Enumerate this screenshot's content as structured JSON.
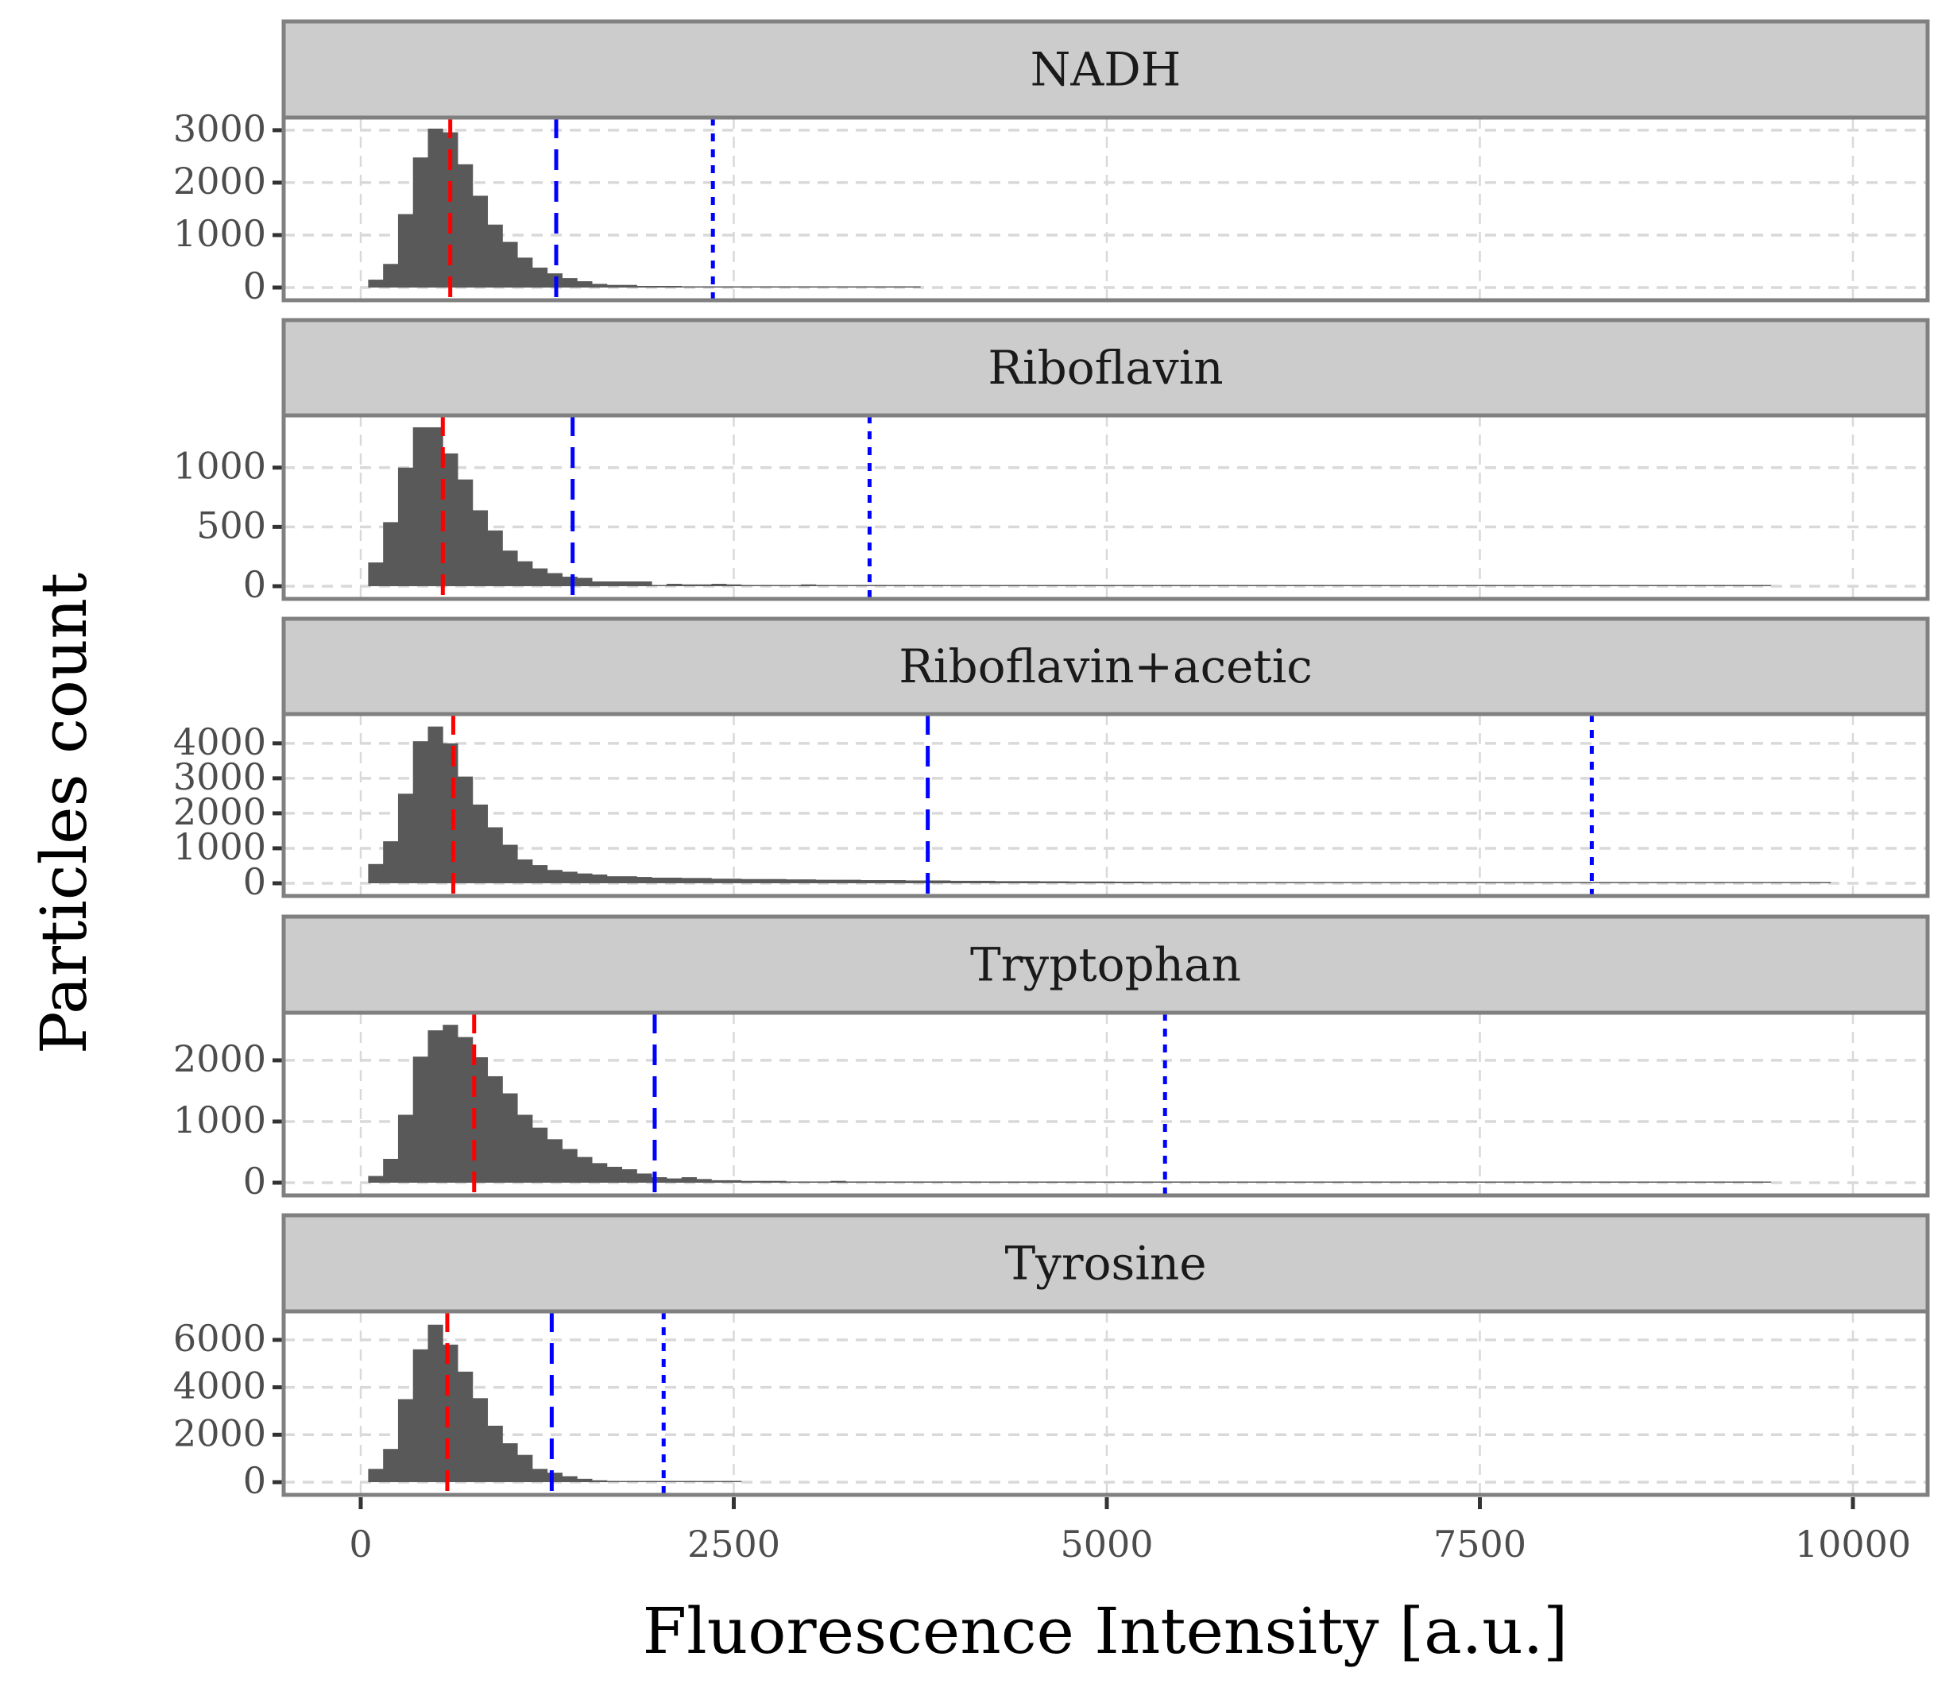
{
  "chart_data": {
    "type": "bar",
    "subtype": "faceted-histogram",
    "xlabel": "Fluorescence Intensity [a.u.]",
    "ylabel": "Particles count",
    "xlim": [
      -500,
      10500
    ],
    "x_ticks": [
      0,
      2500,
      5000,
      7500,
      10000
    ],
    "x_tick_labels": [
      "0",
      "2500",
      "5000",
      "7500",
      "10000"
    ],
    "bin_width": 100,
    "grid": true,
    "colors": {
      "bars": "#595959",
      "strip_fill": "#cccccc",
      "border": "#808080",
      "grid": "#d9d9d9",
      "median_line": "#ff0000",
      "quantile_line": "#0000ff"
    },
    "reference_lines": {
      "red_dashed": "median",
      "blue_dashed": "threshold 1",
      "blue_dotted": "threshold 2"
    },
    "panels": [
      {
        "name": "NADH",
        "ylim": [
          0,
          3150
        ],
        "y_ticks": [
          0,
          1000,
          2000,
          3000
        ],
        "y_tick_labels": [
          "0",
          "1000",
          "2000",
          "3000"
        ],
        "bin_start": 50,
        "counts": [
          150,
          450,
          1400,
          2480,
          3030,
          2960,
          2350,
          1750,
          1200,
          870,
          570,
          380,
          270,
          180,
          120,
          70,
          50,
          50,
          30,
          30,
          30,
          20,
          20,
          20,
          15,
          15,
          15,
          10,
          15,
          10,
          10,
          0,
          0,
          5,
          5,
          5,
          5
        ],
        "red_dashed": 600,
        "blue_dashed": 1310,
        "blue_dotted": 2360
      },
      {
        "name": "Riboflavin",
        "ylim": [
          0,
          1400
        ],
        "y_ticks": [
          0,
          500,
          1000
        ],
        "y_tick_labels": [
          "0",
          "500",
          "1000"
        ],
        "bin_start": 50,
        "counts": [
          200,
          540,
          1000,
          1340,
          1340,
          1120,
          900,
          640,
          470,
          300,
          210,
          150,
          110,
          80,
          70,
          40,
          40,
          40,
          40,
          10,
          20,
          15,
          15,
          20,
          15,
          10,
          10,
          10,
          10,
          15,
          10,
          10,
          10,
          10,
          10,
          10,
          10,
          10,
          10,
          10,
          10,
          10,
          10,
          10,
          10,
          8,
          8,
          8,
          8,
          8,
          8,
          8,
          8,
          8,
          8,
          8,
          8,
          8,
          8,
          8,
          8,
          5,
          5,
          5,
          5,
          5,
          5,
          5,
          5,
          5,
          5,
          5,
          5,
          5,
          5,
          5,
          5,
          5,
          5,
          5,
          5,
          5,
          5,
          5,
          5,
          5,
          5,
          5,
          5,
          5,
          5,
          5,
          5,
          5
        ],
        "red_dashed": 550,
        "blue_dashed": 1420,
        "blue_dotted": 3410
      },
      {
        "name": "Riboflavin+acetic",
        "ylim": [
          0,
          4700
        ],
        "y_ticks": [
          0,
          1000,
          2000,
          3000,
          4000
        ],
        "y_tick_labels": [
          "0",
          "1000",
          "2000",
          "3000",
          "4000"
        ],
        "bin_start": 50,
        "counts": [
          550,
          1200,
          2560,
          4060,
          4480,
          4000,
          3050,
          2250,
          1600,
          1100,
          680,
          520,
          380,
          330,
          280,
          250,
          200,
          200,
          180,
          160,
          160,
          150,
          150,
          130,
          130,
          120,
          120,
          120,
          110,
          110,
          100,
          100,
          100,
          90,
          90,
          90,
          80,
          80,
          80,
          70,
          70,
          70,
          60,
          60,
          60,
          55,
          55,
          50,
          50,
          50,
          45,
          45,
          40,
          40,
          40,
          35,
          35,
          30,
          30,
          30,
          30,
          25,
          25,
          25,
          25,
          20,
          20,
          20,
          20,
          20,
          15,
          15,
          15,
          15,
          15,
          10,
          10,
          10,
          10,
          10,
          10,
          10,
          10,
          10,
          8,
          8,
          8,
          8,
          8,
          8,
          8,
          8,
          8,
          8,
          8,
          5,
          5,
          5
        ],
        "red_dashed": 620,
        "blue_dashed": 3800,
        "blue_dotted": 8250
      },
      {
        "name": "Tryptophan",
        "ylim": [
          0,
          2700
        ],
        "y_ticks": [
          0,
          1000,
          2000
        ],
        "y_tick_labels": [
          "0",
          "1000",
          "2000"
        ],
        "bin_start": 50,
        "counts": [
          110,
          390,
          1110,
          2060,
          2490,
          2580,
          2380,
          2050,
          1740,
          1460,
          1110,
          900,
          710,
          550,
          420,
          320,
          260,
          220,
          150,
          90,
          70,
          90,
          60,
          40,
          40,
          30,
          30,
          30,
          20,
          20,
          20,
          30,
          20,
          20,
          20,
          20,
          20,
          20,
          20,
          20,
          20,
          15,
          15,
          15,
          15,
          15,
          15,
          15,
          15,
          10,
          10,
          10,
          10,
          10,
          10,
          10,
          10,
          10,
          10,
          10,
          10,
          10,
          10,
          10,
          10,
          10,
          10,
          10,
          10,
          10,
          10,
          10,
          10,
          10,
          10,
          10,
          10,
          10,
          10,
          10,
          10,
          10,
          10,
          10,
          10,
          10,
          10,
          10,
          10,
          10,
          5,
          5,
          5,
          5
        ],
        "red_dashed": 760,
        "blue_dashed": 1970,
        "blue_dotted": 5390
      },
      {
        "name": "Tyrosine",
        "ylim": [
          0,
          7000
        ],
        "y_ticks": [
          0,
          2000,
          4000,
          6000
        ],
        "y_tick_labels": [
          "0",
          "2000",
          "4000",
          "6000"
        ],
        "bin_start": 50,
        "counts": [
          560,
          1400,
          3500,
          5600,
          6640,
          5800,
          4660,
          3540,
          2380,
          1640,
          1150,
          560,
          400,
          250,
          140,
          80,
          50,
          30,
          20,
          15,
          15,
          10,
          10,
          10,
          10
        ],
        "red_dashed": 580,
        "blue_dashed": 1280,
        "blue_dotted": 2030
      }
    ]
  }
}
